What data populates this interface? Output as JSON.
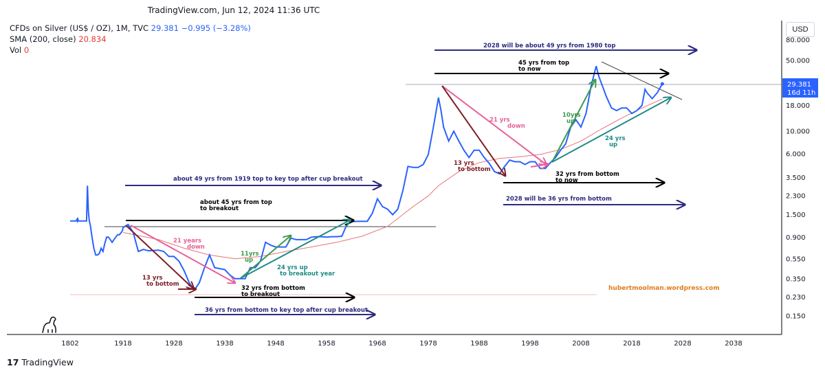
{
  "header": {
    "timestamp": "TradingView.com, Jun 12, 2024 11:36 UTC"
  },
  "legend": {
    "symbol": "CFDs on Silver (US$ / OZ), 1M, TVC",
    "price": "29.381",
    "change": "−0.995 (−3.28%)",
    "sma_label": "SMA (200, close)",
    "sma_value": "20.834",
    "vol_label": "Vol",
    "vol_value": "0"
  },
  "currency_button": "USD",
  "branding": {
    "logo": "17",
    "name": "TradingView"
  },
  "price_tag": {
    "value": "29.381",
    "countdown": "16d 11h"
  },
  "watermark": "hubertmoolman.wordpress.com",
  "colors": {
    "price_line": "#2962ff",
    "sma_line": "#e57373",
    "arrow_navy": "#2c2a7f",
    "arrow_black": "#000000",
    "arrow_pink": "#e8609a",
    "arrow_green": "#3a9a4c",
    "arrow_teal": "#1e8a86",
    "arrow_maroon": "#7b1e24",
    "watermark": "#e07b1f"
  },
  "annotations": {
    "a1980": "2028 will be about 49 yrs  from 1980 top",
    "a45top_1": "45 yrs from top",
    "a45top_2": "to now",
    "a21down_right_1": "21 yrs",
    "a21down_right_2": "down",
    "a10up_1": "10yrs",
    "a10up_2": "up",
    "a24up_right_1": "24 yrs",
    "a24up_right_2": "up",
    "a13bottom_right_1": "13 yrs",
    "a13bottom_right_2": "to bottom",
    "a32now_1": "32 yrs from bottom",
    "a32now_2": "to now",
    "a2028bottom": "2028 will be 36 yrs from bottom",
    "a49_1919": "about 49 yrs from 1919 top to key top after cup breakout",
    "a45breakout_1": "about 45 yrs from top",
    "a45breakout_2": "to breakout",
    "a21down_left_1": "21 years",
    "a21down_left_2": "down",
    "a11up_1": "11yrs",
    "a11up_2": "up",
    "a24breakout_1": "24 yrs up",
    "a24breakout_2": "to breakout year",
    "a13bottom_left_1": "13 yrs",
    "a13bottom_left_2": "to bottom",
    "a32breakout_1": "32 yrs from bottom",
    "a32breakout_2": "to breakout",
    "a36": "36 yrs from bottom to key top after cup breakout"
  },
  "chart_data": {
    "type": "line",
    "title": "",
    "xlabel": "",
    "ylabel": "",
    "y_scale": "log",
    "x_ticks": [
      "1802",
      "1918",
      "1928",
      "1938",
      "1948",
      "1958",
      "1968",
      "1978",
      "1988",
      "1998",
      "2008",
      "2018",
      "2028",
      "2038"
    ],
    "y_ticks": [
      "80.000",
      "50.000",
      "18.000",
      "10.000",
      "6.000",
      "3.500",
      "2.300",
      "1.500",
      "0.900",
      "0.550",
      "0.350",
      "0.230",
      "0.150"
    ],
    "grid": true,
    "series": [
      {
        "name": "CFDs on Silver (US$ / OZ)",
        "x": [
          1802,
          1812,
          1813,
          1815,
          1817,
          1818,
          1819,
          1820,
          1822,
          1825,
          1827,
          1830,
          1832,
          1834,
          1836,
          1838,
          1840,
          1842,
          1844,
          1846,
          1850,
          1854,
          1858,
          1862,
          1866,
          1870,
          1874,
          1878,
          1882,
          1886,
          1890,
          1894,
          1898,
          1902,
          1906,
          1910,
          1914,
          1917,
          1918,
          1919,
          1920,
          1921,
          1922,
          1923,
          1925,
          1926,
          1927,
          1928,
          1929,
          1930,
          1931,
          1932,
          1933,
          1934,
          1935,
          1936,
          1937,
          1938,
          1939,
          1940,
          1941,
          1942,
          1943,
          1944,
          1945,
          1946,
          1947,
          1948,
          1949,
          1950,
          1951,
          1952,
          1953,
          1954,
          1955,
          1956,
          1957,
          1958,
          1959,
          1960,
          1961,
          1962,
          1963,
          1964,
          1965,
          1966,
          1967,
          1968,
          1969,
          1970,
          1971,
          1972,
          1973,
          1974,
          1975,
          1976,
          1977,
          1978,
          1979,
          1980,
          1980.5,
          1981,
          1982,
          1983,
          1984,
          1985,
          1986,
          1987,
          1988,
          1989,
          1990,
          1991,
          1992,
          1993,
          1994,
          1995,
          1996,
          1997,
          1998,
          1999,
          2000,
          2001,
          2002,
          2003,
          2004,
          2005,
          2006,
          2007,
          2008,
          2009,
          2010,
          2011,
          2011.5,
          2012,
          2013,
          2014,
          2015,
          2016,
          2017,
          2018,
          2019,
          2020,
          2020.6,
          2021,
          2022,
          2023,
          2024
        ],
        "values": [
          1.3,
          1.3,
          1.3,
          1.3,
          1.35,
          1.3,
          1.35,
          1.3,
          1.3,
          1.3,
          1.3,
          1.3,
          1.3,
          1.3,
          1.3,
          1.3,
          2.9,
          1.6,
          1.3,
          1.2,
          0.9,
          0.7,
          0.6,
          0.6,
          0.62,
          0.7,
          0.65,
          0.78,
          0.9,
          0.9,
          0.85,
          0.8,
          0.85,
          0.9,
          0.95,
          0.95,
          1.0,
          1.05,
          1.12,
          1.2,
          1.0,
          0.65,
          0.68,
          0.66,
          0.67,
          0.65,
          0.58,
          0.58,
          0.52,
          0.42,
          0.32,
          0.27,
          0.32,
          0.45,
          0.6,
          0.45,
          0.44,
          0.43,
          0.38,
          0.35,
          0.35,
          0.35,
          0.45,
          0.45,
          0.52,
          0.8,
          0.75,
          0.72,
          0.72,
          0.72,
          0.88,
          0.85,
          0.85,
          0.85,
          0.9,
          0.91,
          0.91,
          0.9,
          0.91,
          0.91,
          0.92,
          1.2,
          1.28,
          1.29,
          1.29,
          1.29,
          1.55,
          2.15,
          1.8,
          1.7,
          1.5,
          1.7,
          2.6,
          4.5,
          4.4,
          4.4,
          4.7,
          5.9,
          11,
          21.5,
          16,
          11,
          8,
          10,
          8,
          6.5,
          5.5,
          6.5,
          6.5,
          5.5,
          4.8,
          4.0,
          3.8,
          4.5,
          5.2,
          5.0,
          5.0,
          4.7,
          5.0,
          5.0,
          4.3,
          4.3,
          4.9,
          5.5,
          6.5,
          7.5,
          11,
          13,
          11,
          15,
          28,
          44,
          35,
          30,
          22,
          17,
          16,
          17,
          17,
          15,
          16,
          18,
          26,
          24,
          21,
          24,
          29.381
        ]
      },
      {
        "name": "SMA (200, close)",
        "x": [
          1918,
          1925,
          1930,
          1935,
          1940,
          1945,
          1950,
          1955,
          1960,
          1965,
          1970,
          1975,
          1978,
          1980,
          1984,
          1988,
          1992,
          1996,
          2000,
          2004,
          2008,
          2012,
          2016,
          2020,
          2024
        ],
        "values": [
          1.0,
          0.85,
          0.7,
          0.6,
          0.55,
          0.58,
          0.65,
          0.72,
          0.8,
          0.92,
          1.15,
          1.8,
          2.3,
          2.9,
          4.0,
          4.9,
          5.4,
          5.6,
          5.9,
          6.6,
          8.0,
          10.5,
          13.5,
          17,
          20.834
        ]
      }
    ],
    "current_price": "29.381",
    "countdown": "16d 11h"
  }
}
